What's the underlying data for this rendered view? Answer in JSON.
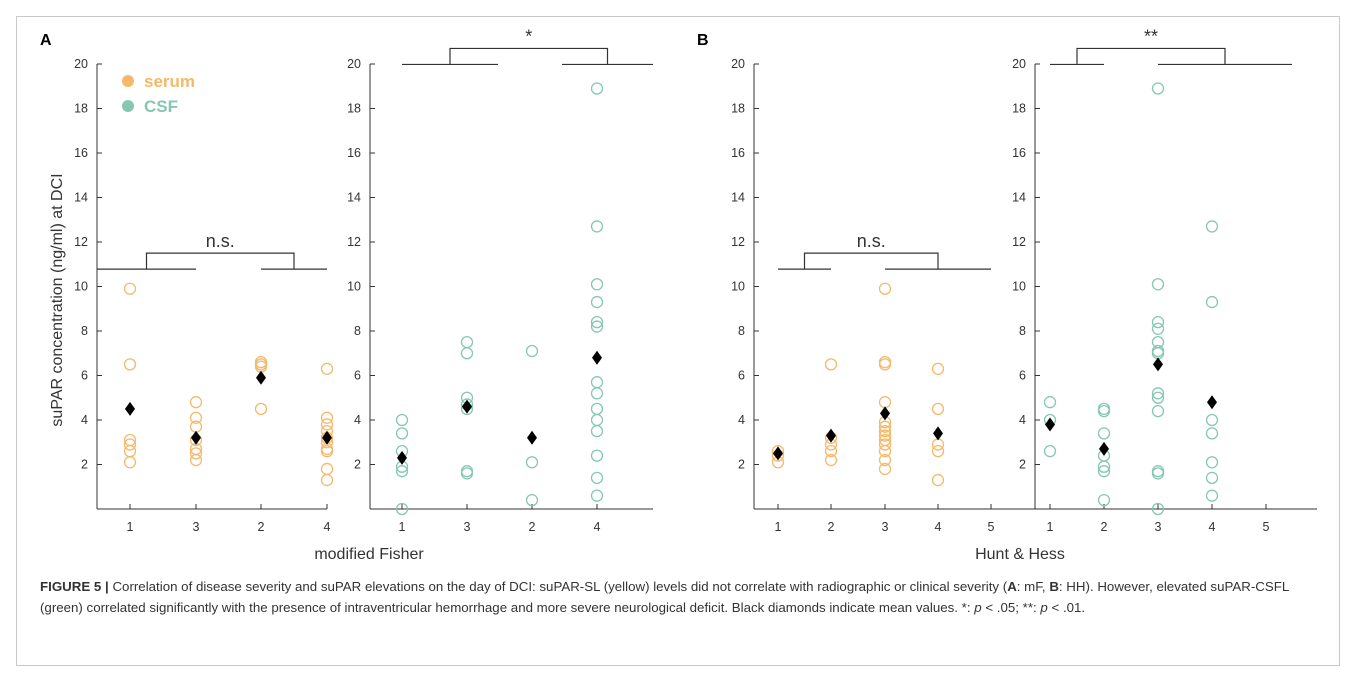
{
  "figure": {
    "panel_letters": [
      "A",
      "B"
    ],
    "ylabel": "suPAR concentration (ng/ml) at DCI",
    "legend": [
      {
        "label": "serum",
        "color": "#f6b86a"
      },
      {
        "label": "CSF",
        "color": "#86c7b4"
      }
    ],
    "colors": {
      "serum": "#f6b86a",
      "csf": "#86c7b4",
      "mean": "#000000",
      "axis": "#333333"
    },
    "caption": {
      "label": "FIGURE 5 |",
      "text1": " Correlation of disease severity and suPAR elevations on the day of DCI: suPAR-SL (yellow) levels did not correlate with radiographic or clinical severity (",
      "A": "A",
      "text2": ": mF, ",
      "B": "B",
      "text3": ": HH). However, elevated suPAR-CSFL (green) correlated significantly with the presence of intraventricular hemorrhage and more severe neurological deficit. Black diamonds indicate mean values. *: ",
      "p1": "p",
      "text4": " < .05; **: ",
      "p2": "p",
      "text5": " < .01."
    }
  },
  "chart_data": [
    {
      "type": "scatter",
      "panel": "A",
      "series_kind": "serum",
      "xlabel": "modified Fisher",
      "ylabel": "suPAR concentration (ng/ml) at DCI",
      "categories": [
        "1",
        "3",
        "2",
        "4"
      ],
      "yticks": [
        2,
        4,
        6,
        8,
        10,
        12,
        14,
        16,
        18,
        20
      ],
      "ylim": [
        0,
        20
      ],
      "points": [
        [
          9.9,
          6.5,
          3.1,
          2.9,
          2.6,
          2.1
        ],
        [
          4.8,
          4.1,
          3.7,
          3.1,
          2.7,
          2.5,
          2.2
        ],
        [
          6.6,
          6.5,
          6.4,
          4.5
        ],
        [
          6.3,
          4.1,
          3.8,
          3.5,
          3.2,
          3.0,
          2.7,
          2.6,
          1.8,
          1.3
        ]
      ],
      "means": [
        4.5,
        3.2,
        5.9,
        3.2
      ],
      "significance": {
        "label": "n.s.",
        "level": 11.5
      }
    },
    {
      "type": "scatter",
      "panel": "A",
      "series_kind": "csf",
      "xlabel": "modified Fisher",
      "ylabel": "",
      "categories": [
        "1",
        "3",
        "2",
        "4"
      ],
      "yticks": [
        2,
        4,
        6,
        8,
        10,
        12,
        14,
        16,
        18,
        20
      ],
      "ylim": [
        0,
        20
      ],
      "points": [
        [
          4.0,
          3.4,
          2.6,
          1.9,
          1.7,
          0.0
        ],
        [
          7.5,
          7.0,
          5.0,
          4.7,
          4.5,
          1.7,
          1.6
        ],
        [
          7.1,
          2.1,
          0.4
        ],
        [
          18.9,
          12.7,
          10.1,
          9.3,
          8.4,
          8.2,
          5.7,
          5.2,
          4.5,
          4.0,
          3.5,
          2.4,
          1.4,
          0.6
        ]
      ],
      "means": [
        2.3,
        4.6,
        3.2,
        6.8
      ],
      "significance": {
        "label": "*",
        "level": 20.7
      }
    },
    {
      "type": "scatter",
      "panel": "B",
      "series_kind": "serum",
      "xlabel": "Hunt & Hess",
      "ylabel": "",
      "categories": [
        "1",
        "2",
        "3",
        "4",
        "5"
      ],
      "yticks": [
        2,
        4,
        6,
        8,
        10,
        12,
        14,
        16,
        18,
        20
      ],
      "ylim": [
        0,
        20
      ],
      "points": [
        [
          2.6,
          2.4,
          2.1
        ],
        [
          6.5,
          3.2,
          2.9,
          2.6,
          2.2
        ],
        [
          9.9,
          6.6,
          6.5,
          4.8,
          3.9,
          3.7,
          3.5,
          3.3,
          3.1,
          2.9,
          2.6,
          2.2,
          1.8
        ],
        [
          6.3,
          4.5,
          2.9,
          2.6,
          1.3
        ],
        []
      ],
      "means": [
        2.5,
        3.3,
        4.3,
        3.4,
        null
      ],
      "significance": {
        "label": "n.s.",
        "level": 11.5
      }
    },
    {
      "type": "scatter",
      "panel": "B",
      "series_kind": "csf",
      "xlabel": "Hunt & Hess",
      "ylabel": "",
      "categories": [
        "1",
        "2",
        "3",
        "4",
        "5"
      ],
      "yticks": [
        2,
        4,
        6,
        8,
        10,
        12,
        14,
        16,
        18,
        20
      ],
      "ylim": [
        0,
        20
      ],
      "points": [
        [
          4.8,
          4.0,
          2.6
        ],
        [
          4.5,
          4.4,
          3.4,
          2.4,
          1.9,
          1.7,
          0.4
        ],
        [
          18.9,
          10.1,
          8.4,
          8.1,
          7.5,
          7.1,
          7.0,
          5.2,
          5.0,
          4.4,
          1.7,
          1.6,
          0.0
        ],
        [
          12.7,
          9.3,
          4.0,
          3.4,
          2.1,
          1.4,
          0.6
        ],
        []
      ],
      "means": [
        3.8,
        2.7,
        6.5,
        4.8,
        null
      ],
      "significance": {
        "label": "**",
        "level": 20.7
      }
    }
  ]
}
